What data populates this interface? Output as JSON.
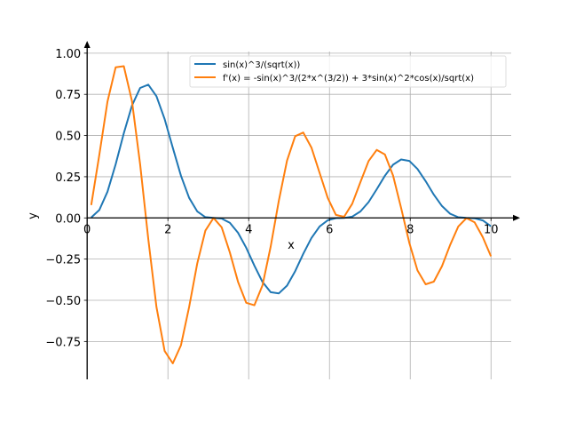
{
  "chart_data": {
    "type": "line",
    "title": "",
    "xlabel": "x",
    "ylabel": "y",
    "xlim": [
      -0.4,
      10.5
    ],
    "ylim": [
      -0.98,
      1.01
    ],
    "grid": true,
    "legend_position": "top-right",
    "xticks": [
      0,
      2,
      4,
      6,
      8,
      10
    ],
    "xtick_labels": [
      "0",
      "2",
      "4",
      "6",
      "8",
      "10"
    ],
    "yticks": [
      -0.75,
      -0.5,
      -0.25,
      0,
      0.25,
      0.5,
      0.75,
      1.0
    ],
    "ytick_labels": [
      "−0.75",
      "−0.50",
      "−0.25",
      "0.00",
      "0.25",
      "0.50",
      "0.75",
      "1.00"
    ],
    "x": [
      0.1,
      0.302,
      0.504,
      0.706,
      0.908,
      1.11,
      1.312,
      1.514,
      1.716,
      1.918,
      2.12,
      2.322,
      2.524,
      2.726,
      2.928,
      3.13,
      3.332,
      3.534,
      3.736,
      3.938,
      4.14,
      4.342,
      4.544,
      4.746,
      4.948,
      5.15,
      5.352,
      5.554,
      5.756,
      5.958,
      6.16,
      6.362,
      6.564,
      6.766,
      6.968,
      7.17,
      7.372,
      7.574,
      7.776,
      7.978,
      8.18,
      8.382,
      8.584,
      8.786,
      8.988,
      9.19,
      9.392,
      9.594,
      9.796,
      10.0
    ],
    "series": [
      {
        "name": "sin(x)^3/(sqrt(x))",
        "color": "#1f77b4",
        "values": [
          0.003,
          0.048,
          0.159,
          0.325,
          0.514,
          0.682,
          0.789,
          0.809,
          0.739,
          0.6,
          0.426,
          0.256,
          0.122,
          0.04,
          0.005,
          0.0,
          -0.004,
          -0.03,
          -0.09,
          -0.181,
          -0.289,
          -0.389,
          -0.451,
          -0.458,
          -0.411,
          -0.323,
          -0.218,
          -0.122,
          -0.052,
          -0.014,
          -0.001,
          0.0,
          0.008,
          0.039,
          0.096,
          0.174,
          0.256,
          0.323,
          0.355,
          0.346,
          0.297,
          0.223,
          0.141,
          0.072,
          0.025,
          0.004,
          0.0,
          -0.002,
          -0.015,
          -0.051
        ]
      },
      {
        "name": "f'(x) = -sin(x)^3/(2*x^(3/2)) + 3*sin(x)^2*cos(x)/sqrt(x)",
        "color": "#ff7f0e",
        "values": [
          0.078,
          0.382,
          0.706,
          0.914,
          0.921,
          0.709,
          0.325,
          -0.129,
          -0.541,
          -0.808,
          -0.883,
          -0.773,
          -0.541,
          -0.278,
          -0.077,
          0.0,
          -0.057,
          -0.21,
          -0.388,
          -0.515,
          -0.53,
          -0.409,
          -0.174,
          0.105,
          0.348,
          0.496,
          0.518,
          0.427,
          0.274,
          0.121,
          0.018,
          0.007,
          0.086,
          0.217,
          0.345,
          0.413,
          0.385,
          0.257,
          0.06,
          -0.151,
          -0.319,
          -0.403,
          -0.387,
          -0.293,
          -0.164,
          -0.052,
          -0.001,
          -0.027,
          -0.117,
          -0.233
        ]
      }
    ]
  }
}
